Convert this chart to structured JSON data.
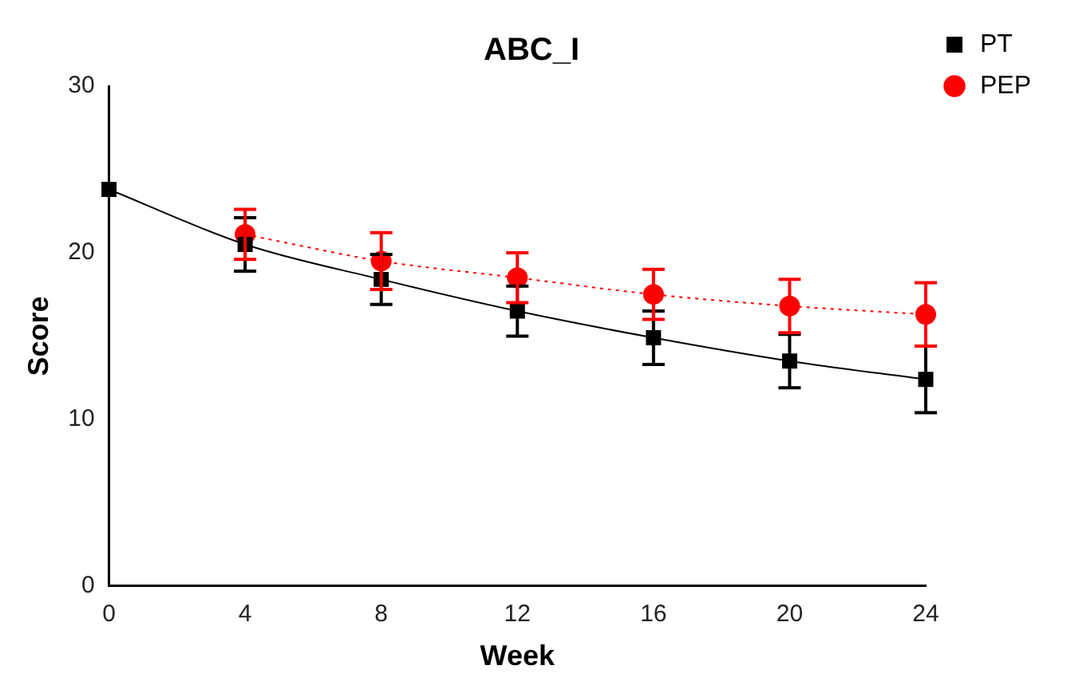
{
  "chart_data": {
    "type": "line",
    "title": "ABC_I",
    "xlabel": "Week",
    "ylabel": "Score",
    "x": [
      0,
      4,
      8,
      12,
      16,
      20,
      24
    ],
    "xlim": [
      0,
      24
    ],
    "xticks": [
      0,
      4,
      8,
      12,
      16,
      20,
      24
    ],
    "ylim": [
      0,
      30
    ],
    "yticks": [
      0,
      10,
      20,
      30
    ],
    "grid": false,
    "legend": "top right",
    "series": [
      {
        "name": "PT",
        "color": "#000000",
        "marker": "square",
        "line_style": "solid",
        "values": [
          23.8,
          20.5,
          18.4,
          16.5,
          14.9,
          13.5,
          12.4
        ],
        "errors": [
          null,
          1.6,
          1.5,
          1.5,
          1.6,
          1.6,
          2.0
        ]
      },
      {
        "name": "PEP",
        "color": "#ff0000",
        "marker": "circle",
        "line_style": "dotted",
        "values": [
          null,
          21.1,
          19.5,
          18.5,
          17.5,
          16.8,
          16.3
        ],
        "errors": [
          null,
          1.5,
          1.7,
          1.5,
          1.5,
          1.6,
          1.9
        ]
      }
    ]
  }
}
